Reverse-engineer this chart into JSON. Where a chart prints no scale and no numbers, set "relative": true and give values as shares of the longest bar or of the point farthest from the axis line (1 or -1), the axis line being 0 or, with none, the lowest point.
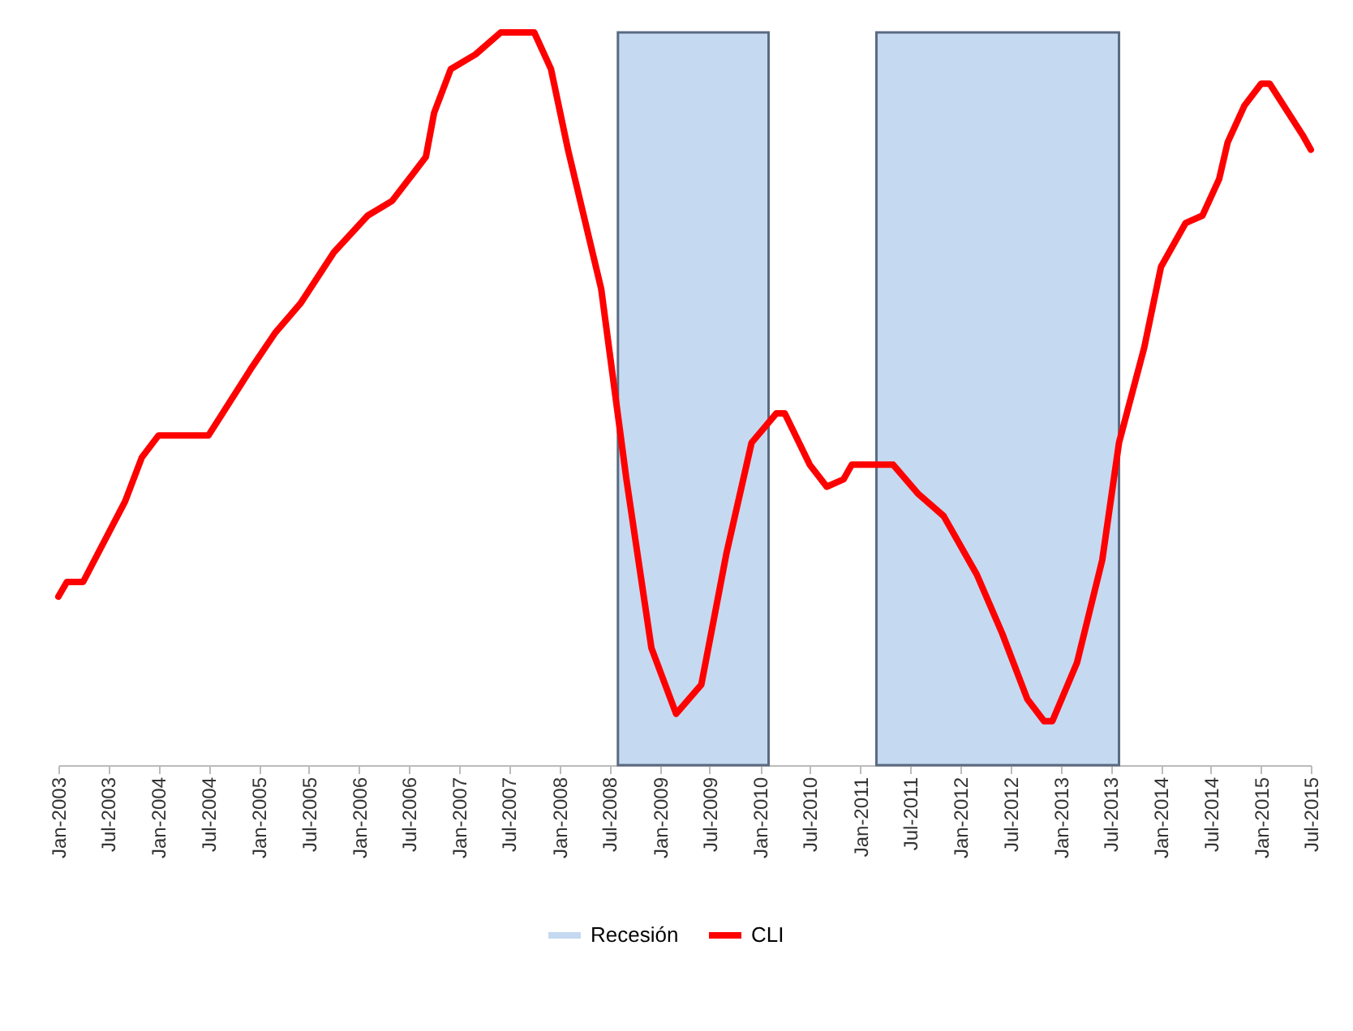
{
  "chart_data": {
    "type": "line",
    "relative": true,
    "legend": "bottom",
    "x": [
      "2003-01",
      "2003-02",
      "2003-04",
      "2003-09",
      "2003-11",
      "2004-01",
      "2004-07",
      "2004-12",
      "2005-03",
      "2005-06",
      "2005-10",
      "2006-02",
      "2006-05",
      "2006-09",
      "2006-10",
      "2006-12",
      "2007-03",
      "2007-06",
      "2007-10",
      "2007-12",
      "2008-02",
      "2008-06",
      "2008-09",
      "2008-12",
      "2009-03",
      "2009-06",
      "2009-09",
      "2009-12",
      "2010-03",
      "2010-04",
      "2010-07",
      "2010-09",
      "2010-11",
      "2010-12",
      "2011-05",
      "2011-08",
      "2011-11",
      "2012-03",
      "2012-06",
      "2012-09",
      "2012-11",
      "2012-12",
      "2013-03",
      "2013-06",
      "2013-08",
      "2013-11",
      "2014-01",
      "2014-04",
      "2014-06",
      "2014-08",
      "2014-09",
      "2014-11",
      "2015-01",
      "2015-02",
      "2015-06",
      "2015-07"
    ],
    "series": [
      {
        "name": "CLI",
        "color": "#ff0000",
        "values": [
          0.23,
          0.25,
          0.25,
          0.36,
          0.42,
          0.45,
          0.45,
          0.54,
          0.59,
          0.63,
          0.7,
          0.75,
          0.77,
          0.83,
          0.89,
          0.95,
          0.97,
          1.0,
          1.0,
          0.95,
          0.84,
          0.65,
          0.39,
          0.16,
          0.07,
          0.11,
          0.29,
          0.44,
          0.48,
          0.48,
          0.41,
          0.38,
          0.39,
          0.41,
          0.41,
          0.37,
          0.34,
          0.26,
          0.18,
          0.09,
          0.06,
          0.06,
          0.14,
          0.28,
          0.44,
          0.57,
          0.68,
          0.74,
          0.75,
          0.8,
          0.85,
          0.9,
          0.93,
          0.93,
          0.86,
          0.84
        ]
      }
    ],
    "xlim": [
      "2003-01",
      "2015-07"
    ],
    "xticks": [
      {
        "value": "2003-01",
        "label": "Jan-2003"
      },
      {
        "value": "2003-07",
        "label": "Jul-2003"
      },
      {
        "value": "2004-01",
        "label": "Jan-2004"
      },
      {
        "value": "2004-07",
        "label": "Jul-2004"
      },
      {
        "value": "2005-01",
        "label": "Jan-2005"
      },
      {
        "value": "2005-07",
        "label": "Jul-2005"
      },
      {
        "value": "2006-01",
        "label": "Jan-2006"
      },
      {
        "value": "2006-07",
        "label": "Jul-2006"
      },
      {
        "value": "2007-01",
        "label": "Jan-2007"
      },
      {
        "value": "2007-07",
        "label": "Jul-2007"
      },
      {
        "value": "2008-01",
        "label": "Jan-2008"
      },
      {
        "value": "2008-07",
        "label": "Jul-2008"
      },
      {
        "value": "2009-01",
        "label": "Jan-2009"
      },
      {
        "value": "2009-07",
        "label": "Jul-2009"
      },
      {
        "value": "2010-01",
        "label": "Jan-2010"
      },
      {
        "value": "2010-07",
        "label": "Jul-2010"
      },
      {
        "value": "2011-01",
        "label": "Jan-2011"
      },
      {
        "value": "2011-07",
        "label": "Jul-2011"
      },
      {
        "value": "2012-01",
        "label": "Jan-2012"
      },
      {
        "value": "2012-07",
        "label": "Jul-2012"
      },
      {
        "value": "2013-01",
        "label": "Jan-2013"
      },
      {
        "value": "2013-07",
        "label": "Jul-2013"
      },
      {
        "value": "2014-01",
        "label": "Jan-2014"
      },
      {
        "value": "2014-07",
        "label": "Jul-2014"
      },
      {
        "value": "2015-01",
        "label": "Jan-2015"
      },
      {
        "value": "2015-07",
        "label": "Jul-2015"
      }
    ],
    "bands": [
      {
        "axis": "x",
        "from": "2008-08",
        "to": "2010-02",
        "label": "Recesión",
        "color": "#c5d9f1"
      },
      {
        "axis": "x",
        "from": "2011-03",
        "to": "2013-08",
        "color": "#c5d9f1"
      }
    ]
  }
}
